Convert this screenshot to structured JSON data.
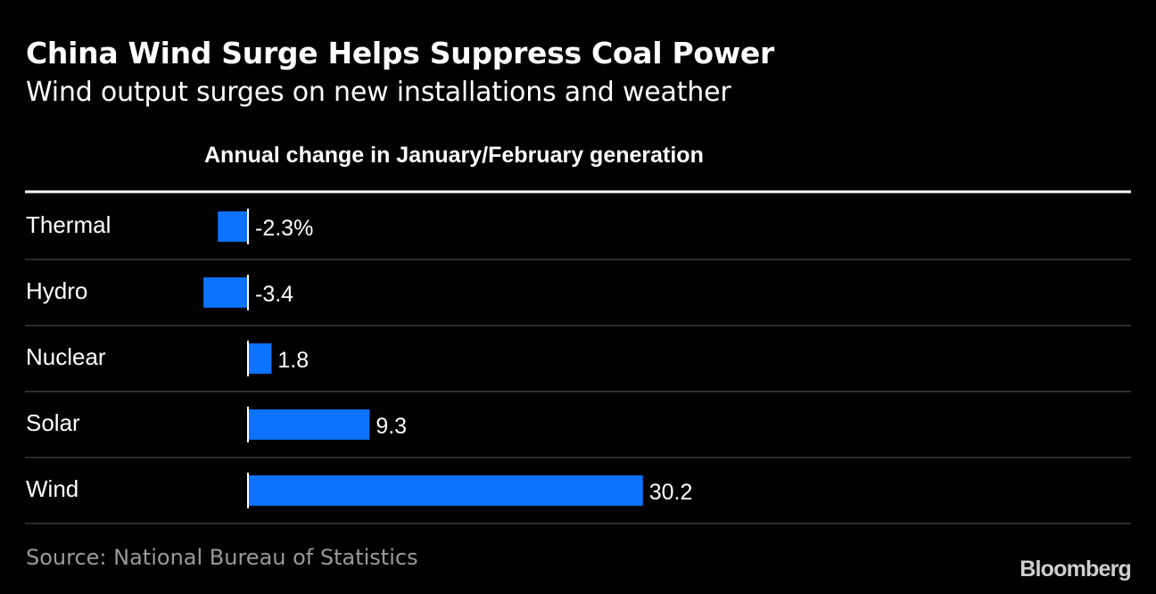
{
  "header": {
    "title": "China Wind Surge Helps Suppress Coal Power",
    "subtitle": "Wind output surges on new installations and weather"
  },
  "footer": {
    "source": "Source: National Bureau of Statistics",
    "logo": "Bloomberg"
  },
  "colors": {
    "background": "#000000",
    "bar": "#0b73ff",
    "text": "#ffffff",
    "rule": "#3a3a3a"
  },
  "chart_data": {
    "type": "bar",
    "orientation": "horizontal",
    "column_header": "Annual change in January/February generation",
    "categories": [
      "Thermal",
      "Hydro",
      "Nuclear",
      "Solar",
      "Wind"
    ],
    "values": [
      -2.3,
      -3.4,
      1.8,
      9.3,
      30.2
    ],
    "value_labels": [
      "-2.3%",
      "-3.4",
      "1.8",
      "9.3",
      "30.2"
    ],
    "unit": "%",
    "grid": false
  }
}
